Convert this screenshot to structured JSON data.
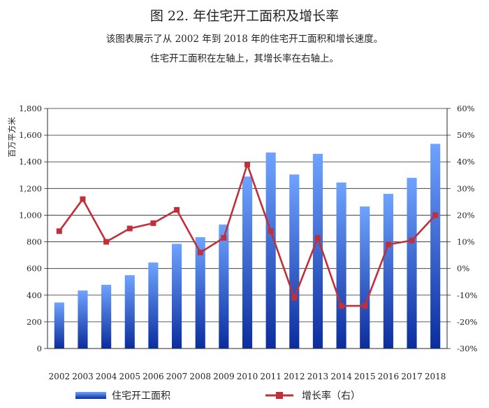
{
  "title": "图 22. 年住宅开工面积及增长率",
  "subtitle_line1": "该图表展示了从 2002 年到 2018 年的住宅开工面积和增长速度。",
  "subtitle_line2": "住宅开工面积在左轴上，其增长率在右轴上。",
  "colors": {
    "bar_top": "#6FA3FF",
    "bar_bottom": "#0B2D9E",
    "line": "#C0303A",
    "marker": "#C0303A",
    "grid": "#2a2a2a"
  },
  "chart_data": {
    "type": "bar+line",
    "grid": true,
    "legend_position": "bottom",
    "y_left": {
      "label": "百万平方米",
      "range": [
        0,
        1800
      ],
      "ticks": [
        0,
        200,
        400,
        600,
        800,
        1000,
        1200,
        1400,
        1600,
        1800
      ],
      "tick_labels": [
        "0",
        "200",
        "400",
        "600",
        "800",
        "1,000",
        "1,200",
        "1,400",
        "1,600",
        "1,800"
      ]
    },
    "y_right": {
      "label": "",
      "range": [
        -30,
        60
      ],
      "ticks": [
        -30,
        -20,
        -10,
        0,
        10,
        20,
        30,
        40,
        50,
        60
      ],
      "tick_labels": [
        "-30%",
        "-20%",
        "-10%",
        "0%",
        "10%",
        "20%",
        "30%",
        "40%",
        "50%",
        "60%"
      ]
    },
    "categories": [
      "2002",
      "2003",
      "2004",
      "2005",
      "2006",
      "2007",
      "2008",
      "2009",
      "2010",
      "2011",
      "2012",
      "2013",
      "2014",
      "2015",
      "2016",
      "2017",
      "2018"
    ],
    "series": [
      {
        "name": "住宅开工面积",
        "type": "bar",
        "axis": "left",
        "values": [
          345,
          435,
          478,
          550,
          645,
          785,
          835,
          930,
          1290,
          1470,
          1305,
          1460,
          1245,
          1065,
          1160,
          1280,
          1535
        ]
      },
      {
        "name": "增长率（右）",
        "type": "line",
        "axis": "right",
        "values": [
          14,
          26,
          10,
          15,
          17,
          22,
          6,
          11.5,
          39,
          14,
          -11,
          11.5,
          -14,
          -14,
          9,
          10.5,
          20
        ]
      }
    ]
  }
}
